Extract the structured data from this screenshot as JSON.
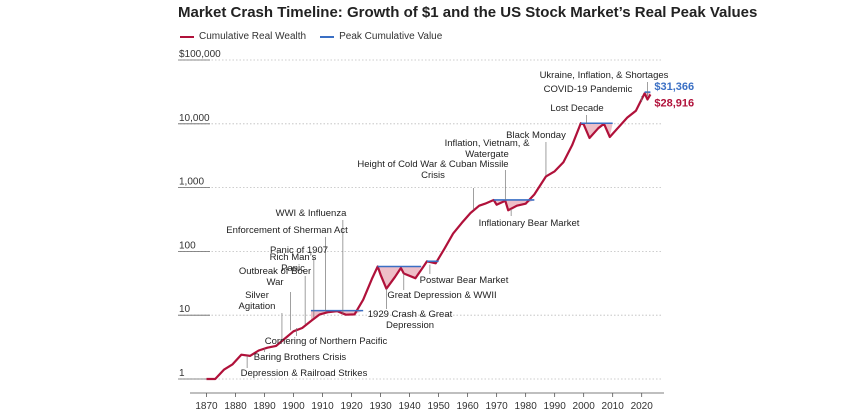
{
  "chart_data": {
    "type": "line",
    "title": "Market Crash Timeline: Growth of $1 and the US Stock Market’s Real Peak Values",
    "y_scale": "log",
    "ylim": [
      1,
      100000
    ],
    "xlim": [
      1865,
      2027
    ],
    "y_ticks": [
      {
        "value": 1,
        "label": "1"
      },
      {
        "value": 10,
        "label": "10"
      },
      {
        "value": 100,
        "label": "100"
      },
      {
        "value": 1000,
        "label": "1,000"
      },
      {
        "value": 10000,
        "label": "10,000"
      },
      {
        "value": 100000,
        "label": "$100,000"
      }
    ],
    "x_ticks": [
      1870,
      1880,
      1890,
      1900,
      1910,
      1920,
      1930,
      1940,
      1950,
      1960,
      1970,
      1980,
      1990,
      2000,
      2010,
      2020
    ],
    "grid": "horizontal dotted",
    "legend_position": "top-left",
    "colors": {
      "wealth": "#b0113a",
      "peak": "#3a6fc4",
      "drawdown_fill": "#e8a9b6"
    },
    "series": [
      {
        "name": "Cumulative Real Wealth",
        "x": [
          1870,
          1873,
          1876,
          1879,
          1882,
          1885,
          1888,
          1891,
          1894,
          1897,
          1900,
          1903,
          1906,
          1909,
          1912,
          1915,
          1918,
          1921,
          1924,
          1927,
          1929,
          1930,
          1932,
          1935,
          1937,
          1938,
          1942,
          1945,
          1946,
          1949,
          1952,
          1955,
          1958,
          1961,
          1964,
          1966,
          1969,
          1970,
          1973,
          1974,
          1977,
          1980,
          1983,
          1987,
          1990,
          1993,
          1996,
          1999,
          2000,
          2002,
          2005,
          2007,
          2009,
          2012,
          2015,
          2018,
          2021,
          2022,
          2023
        ],
        "y": [
          1.0,
          1.0,
          1.4,
          1.7,
          2.4,
          2.3,
          2.8,
          3.1,
          3.3,
          4.3,
          5.6,
          6.3,
          8.1,
          10.3,
          11.2,
          11.6,
          10.2,
          10.3,
          17.5,
          37,
          58,
          43,
          26,
          40,
          55,
          45,
          38,
          60,
          70,
          65,
          110,
          190,
          280,
          400,
          520,
          560,
          640,
          540,
          620,
          440,
          520,
          560,
          780,
          1500,
          1800,
          2500,
          4600,
          10200,
          9800,
          6000,
          8500,
          10000,
          6200,
          8800,
          12500,
          16000,
          30000,
          24000,
          28916
        ]
      },
      {
        "name": "Peak Cumulative Value",
        "segments": [
          {
            "x": [
              1906,
              1924
            ],
            "y": 11.8
          },
          {
            "x": [
              1929,
              1944
            ],
            "y": 58
          },
          {
            "x": [
              1946,
              1950
            ],
            "y": 70
          },
          {
            "x": [
              1969,
              1983
            ],
            "y": 640
          },
          {
            "x": [
              1999,
              2010
            ],
            "y": 10200
          },
          {
            "x": [
              2021,
              2023
            ],
            "y": 31366
          }
        ]
      }
    ],
    "end_labels": [
      {
        "text": "$31,366",
        "value": 31366,
        "series": "peak"
      },
      {
        "text": "$28,916",
        "value": 28916,
        "series": "wealth"
      }
    ],
    "annotations": [
      {
        "text": "Ukraine, Inflation, & Shortages",
        "year": 2022,
        "value": 27000
      },
      {
        "text": "COVID-19 Pandemic",
        "year": 2020,
        "value": 22000
      },
      {
        "text": "Lost Decade",
        "year": 2001,
        "value": 10000
      },
      {
        "text": "Black Monday",
        "year": 1987,
        "value": 1550
      },
      {
        "text": "Inflation, Vietnam, & Watergate",
        "year": 1973,
        "value": 640
      },
      {
        "text": "Height of Cold War & Cuban Missile Crisis",
        "year": 1962,
        "value": 450
      },
      {
        "text": "Inflationary Bear Market",
        "year": 1975,
        "value": 460
      },
      {
        "text": "WWI & Influenza",
        "year": 1917,
        "value": 10.5
      },
      {
        "text": "Enforcement of Sherman Act",
        "year": 1911,
        "value": 11.5
      },
      {
        "text": "Panic of 1907",
        "year": 1907,
        "value": 9.2
      },
      {
        "text": "Rich Man's Panic",
        "year": 1904,
        "value": 7.2
      },
      {
        "text": "Outbreak of Boer War",
        "year": 1899,
        "value": 5.8
      },
      {
        "text": "Silver Agitation",
        "year": 1896,
        "value": 4.0
      },
      {
        "text": "Postwar Bear Market",
        "year": 1947,
        "value": 62
      },
      {
        "text": "Great Depression & WWII",
        "year": 1938,
        "value": 45
      },
      {
        "text": "1929 Crash & Great Depression",
        "year": 1932,
        "value": 26
      },
      {
        "text": "Cornering of Northern Pacific",
        "year": 1901,
        "value": 6.3
      },
      {
        "text": "Baring Brothers Crisis",
        "year": 1890,
        "value": 3.0
      },
      {
        "text": "Depression & Railroad Strikes",
        "year": 1884,
        "value": 2.3
      }
    ]
  }
}
